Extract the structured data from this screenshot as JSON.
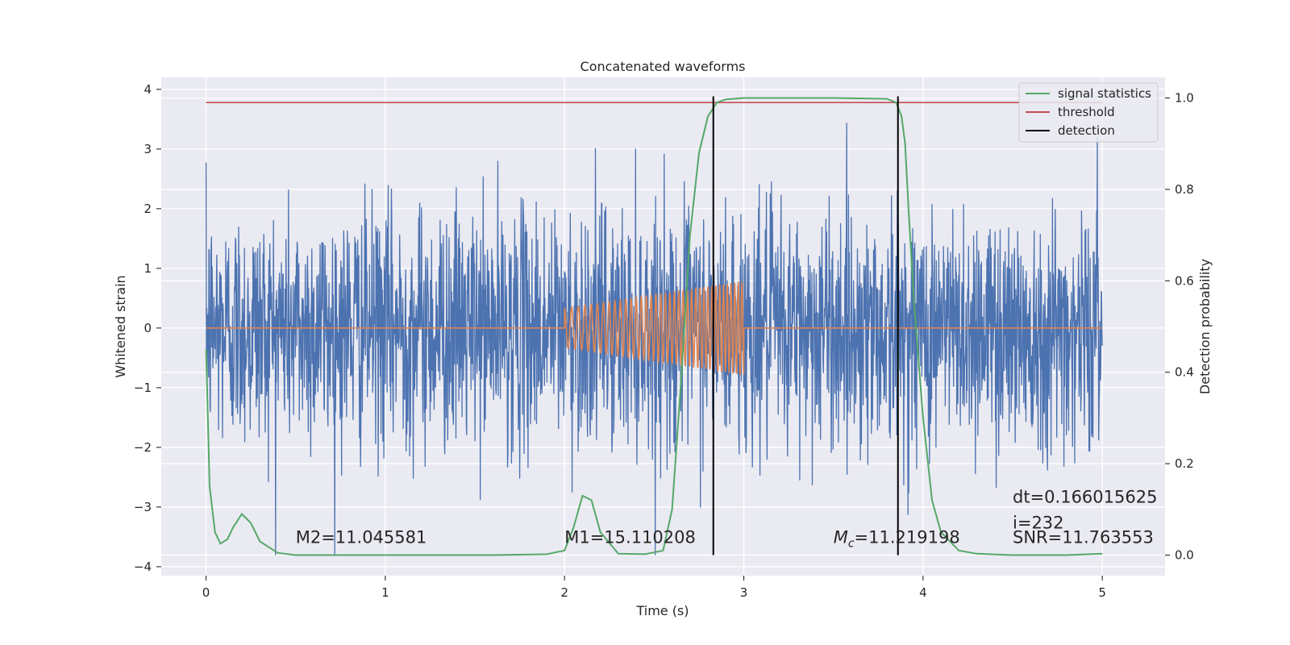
{
  "chart_data": {
    "type": "line",
    "title": "Concatenated waveforms",
    "xlabel": "Time (s)",
    "ylabel": "Whitened strain",
    "ylabel_right": "Detection probability",
    "xlim": [
      -0.25,
      5.35
    ],
    "ylim": [
      -4.15,
      4.2
    ],
    "ylim_right": [
      -0.045,
      1.045
    ],
    "x_ticks": [
      0,
      1,
      2,
      3,
      4,
      5
    ],
    "y_ticks": [
      -4,
      -3,
      -2,
      -1,
      0,
      1,
      2,
      3,
      4
    ],
    "y_ticks_right": [
      0.0,
      0.2,
      0.4,
      0.6,
      0.8,
      1.0
    ],
    "grid": true,
    "legend_position": "top-right",
    "colors": {
      "strain": "#4c72b0",
      "template": "#dd8452",
      "signal_statistics": "#55a868",
      "threshold": "#c44e52",
      "detection": "#000000",
      "background": "#eaeaf2",
      "grid": "#ffffff"
    },
    "legend": [
      {
        "name": "signal statistics",
        "color": "#55a868"
      },
      {
        "name": "threshold",
        "color": "#c44e52"
      },
      {
        "name": "detection",
        "color": "#000000"
      }
    ],
    "threshold_value": 0.99,
    "detections_x": [
      2.83,
      3.86
    ],
    "strain": {
      "x_start": 0,
      "x_end": 5,
      "noise_std": 1.0,
      "max": 3.8,
      "min": -3.8
    },
    "template": {
      "x_start": 2.0,
      "x_end": 3.0,
      "amplitude_start": 0.33,
      "amplitude_end": 0.78,
      "freq_start_hz": 25,
      "freq_end_hz": 50
    },
    "signal_statistics": {
      "x": [
        0,
        0.02,
        0.05,
        0.08,
        0.12,
        0.15,
        0.2,
        0.25,
        0.3,
        0.4,
        0.5,
        0.8,
        1.2,
        1.6,
        1.9,
        2.0,
        2.05,
        2.1,
        2.15,
        2.2,
        2.3,
        2.45,
        2.55,
        2.6,
        2.65,
        2.7,
        2.75,
        2.8,
        2.85,
        2.9,
        3.0,
        3.5,
        3.8,
        3.85,
        3.88,
        3.9,
        3.92,
        3.95,
        4.0,
        4.05,
        4.1,
        4.2,
        4.3,
        4.5,
        4.8,
        5.0
      ],
      "y": [
        0.45,
        0.15,
        0.05,
        0.025,
        0.035,
        0.06,
        0.09,
        0.07,
        0.03,
        0.005,
        0.0,
        0.0,
        0.0,
        0.0,
        0.002,
        0.01,
        0.06,
        0.13,
        0.12,
        0.05,
        0.003,
        0.002,
        0.01,
        0.1,
        0.38,
        0.7,
        0.88,
        0.96,
        0.99,
        0.997,
        1.0,
        1.0,
        0.998,
        0.99,
        0.96,
        0.9,
        0.75,
        0.55,
        0.3,
        0.12,
        0.05,
        0.01,
        0.003,
        0.0,
        0.0,
        0.003
      ]
    },
    "annotations": [
      {
        "id": "m2",
        "text": "M2=11.045581",
        "x": 0.5,
        "y": -3.6
      },
      {
        "id": "m1",
        "text": "M1=15.110208",
        "x": 2.0,
        "y": -3.6
      },
      {
        "id": "mc",
        "text": "=11.219198",
        "symbol": "M",
        "subscript": "c",
        "x": 3.5,
        "y": -3.6
      },
      {
        "id": "dt",
        "text": "dt=0.166015625",
        "x": 4.5,
        "y": -2.93
      },
      {
        "id": "i",
        "text": " i=232",
        "x": 4.5,
        "y": -3.36
      },
      {
        "id": "snr",
        "text": "SNR=11.763553",
        "x": 4.5,
        "y": -3.6
      }
    ]
  }
}
